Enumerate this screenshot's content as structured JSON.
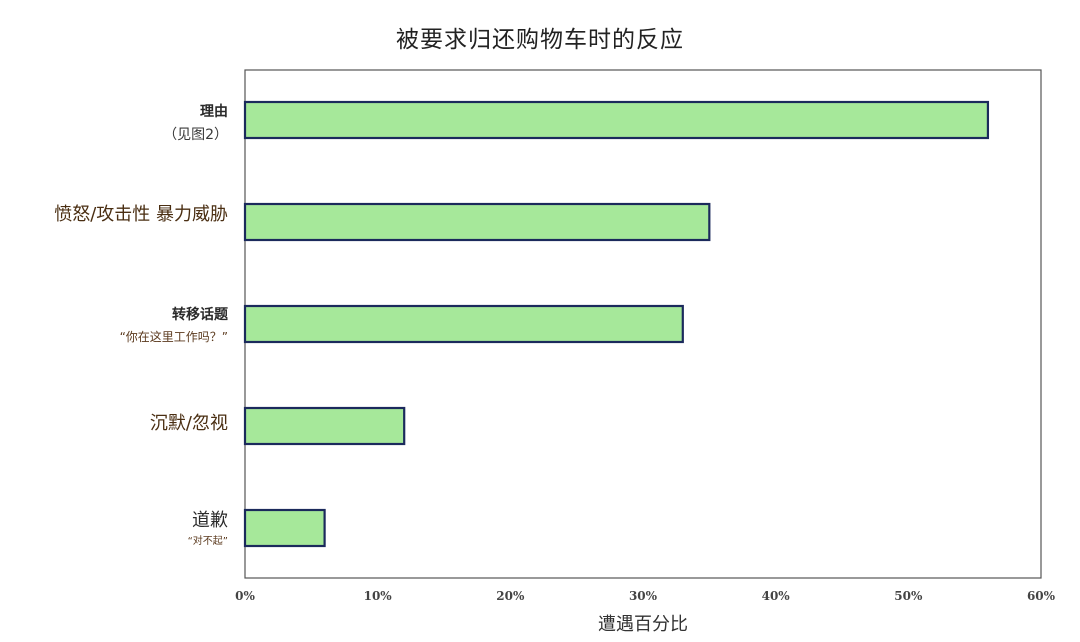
{
  "chart_data": {
    "type": "bar",
    "orientation": "horizontal",
    "title": "被要求归还购物车时的反应",
    "xlabel": "遭遇百分比",
    "ylabel": "",
    "xlim": [
      0,
      60
    ],
    "xticks": [
      "0%",
      "10%",
      "20%",
      "30%",
      "40%",
      "50%",
      "60%"
    ],
    "categories": [
      {
        "label": "理由",
        "sub": "（见图2）"
      },
      {
        "label": "愤怒/攻击性 暴力威胁",
        "sub": ""
      },
      {
        "label": "转移话题",
        "sub": "“你在这里工作吗？”"
      },
      {
        "label": "沉默/忽视",
        "sub": ""
      },
      {
        "label": "道歉",
        "sub": "“对不起”"
      }
    ],
    "values": [
      56,
      35,
      33,
      12,
      6
    ],
    "grid": false,
    "legend": "none",
    "colors": {
      "bar_fill": "#a6e89a",
      "bar_stroke": "#1b2a5c",
      "frame": "#555555",
      "label_text": "#2a2a2a",
      "sub_text": "#5b3a1e"
    }
  }
}
